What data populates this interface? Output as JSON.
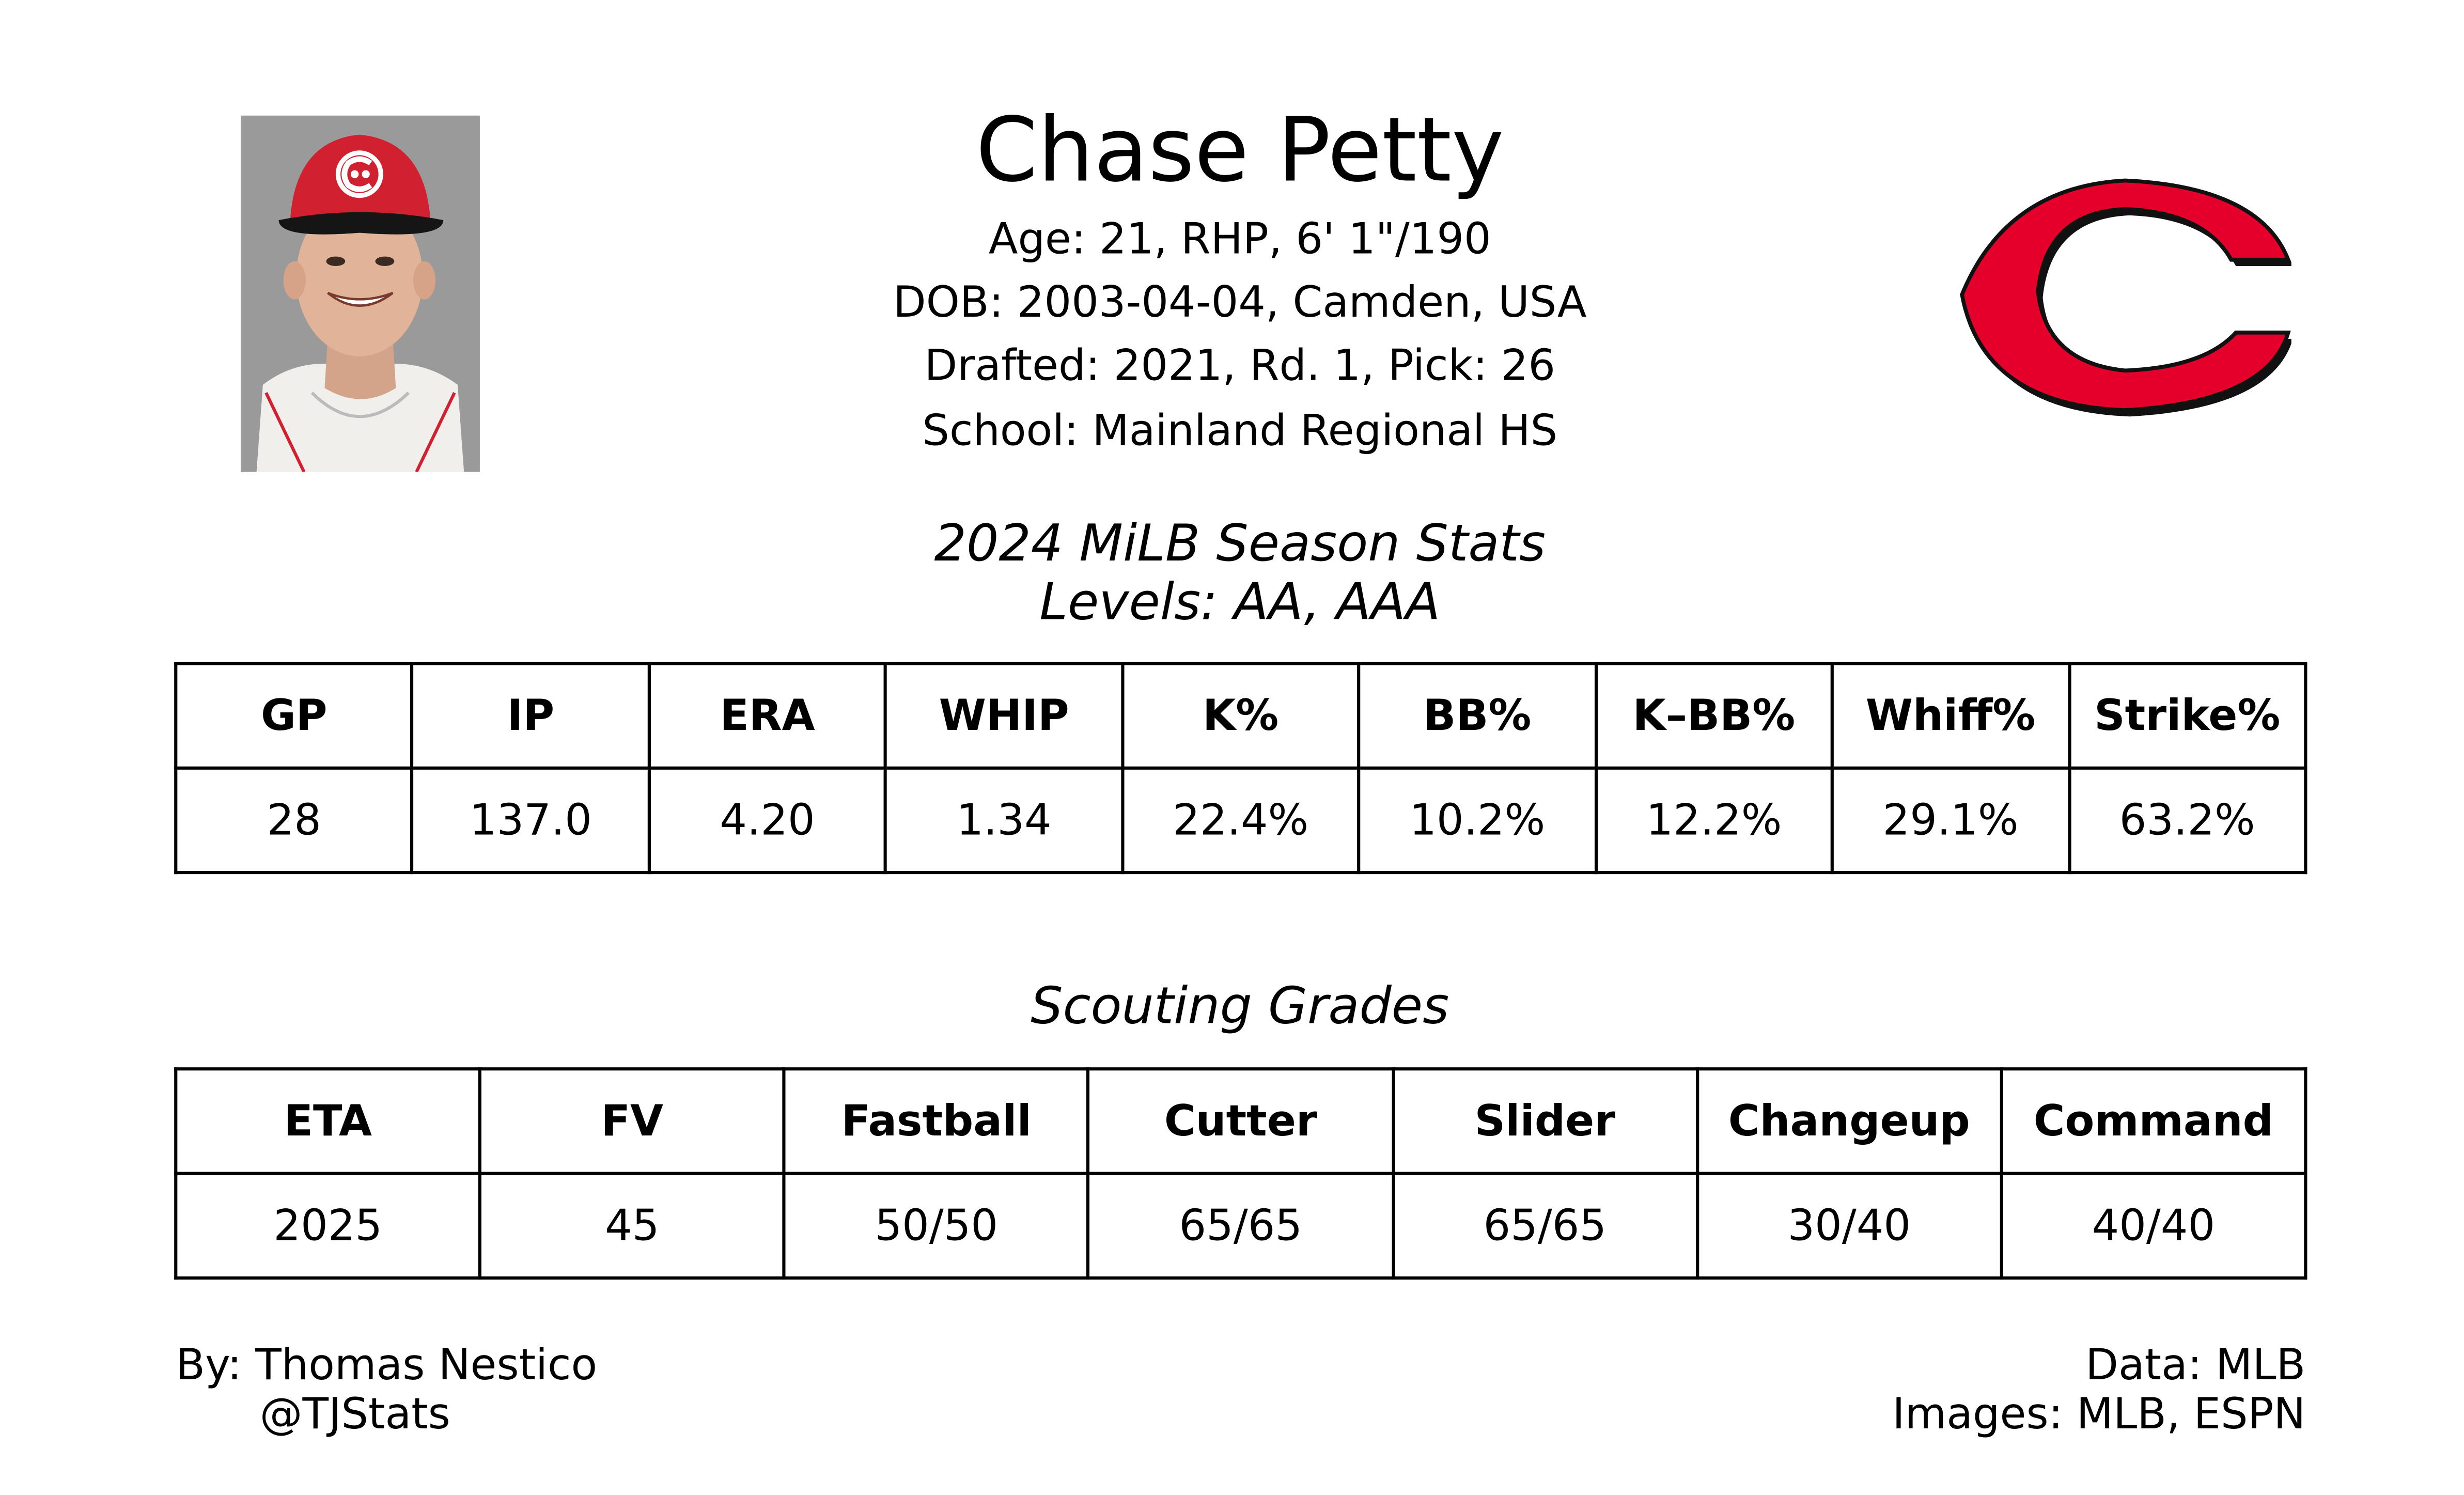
{
  "header": {
    "player_name": "Chase Petty",
    "bio": {
      "age_line": "Age: 21, RHP, 6' 1\"/190",
      "dob_line": "DOB: 2003-04-04, Camden, USA",
      "drafted_line": "Drafted: 2021, Rd. 1, Pick: 26",
      "school_line": "School: Mainland Regional HS"
    },
    "headshot_icon": "player-headshot",
    "logo_icon": "cincinnati-reds-c-logo",
    "colors": {
      "logo_red": "#e4002b",
      "headshot_bg": "#9a9a9a"
    }
  },
  "season_stats": {
    "title": "2024 MiLB Season Stats",
    "levels": "Levels: AA, AAA",
    "columns": [
      "GP",
      "IP",
      "ERA",
      "WHIP",
      "K%",
      "BB%",
      "K–BB%",
      "Whiff%",
      "Strike%"
    ],
    "values": [
      "28",
      "137.0",
      "4.20",
      "1.34",
      "22.4%",
      "10.2%",
      "12.2%",
      "29.1%",
      "63.2%"
    ]
  },
  "scouting_grades": {
    "title": "Scouting Grades",
    "columns": [
      "ETA",
      "FV",
      "Fastball",
      "Cutter",
      "Slider",
      "Changeup",
      "Command"
    ],
    "values": [
      "2025",
      "45",
      "50/50",
      "65/65",
      "65/65",
      "30/40",
      "40/40"
    ]
  },
  "footer": {
    "by": "By: Thomas Nestico",
    "handle": "@TJStats",
    "data_source": "Data: MLB",
    "images_source": "Images: MLB, ESPN"
  }
}
